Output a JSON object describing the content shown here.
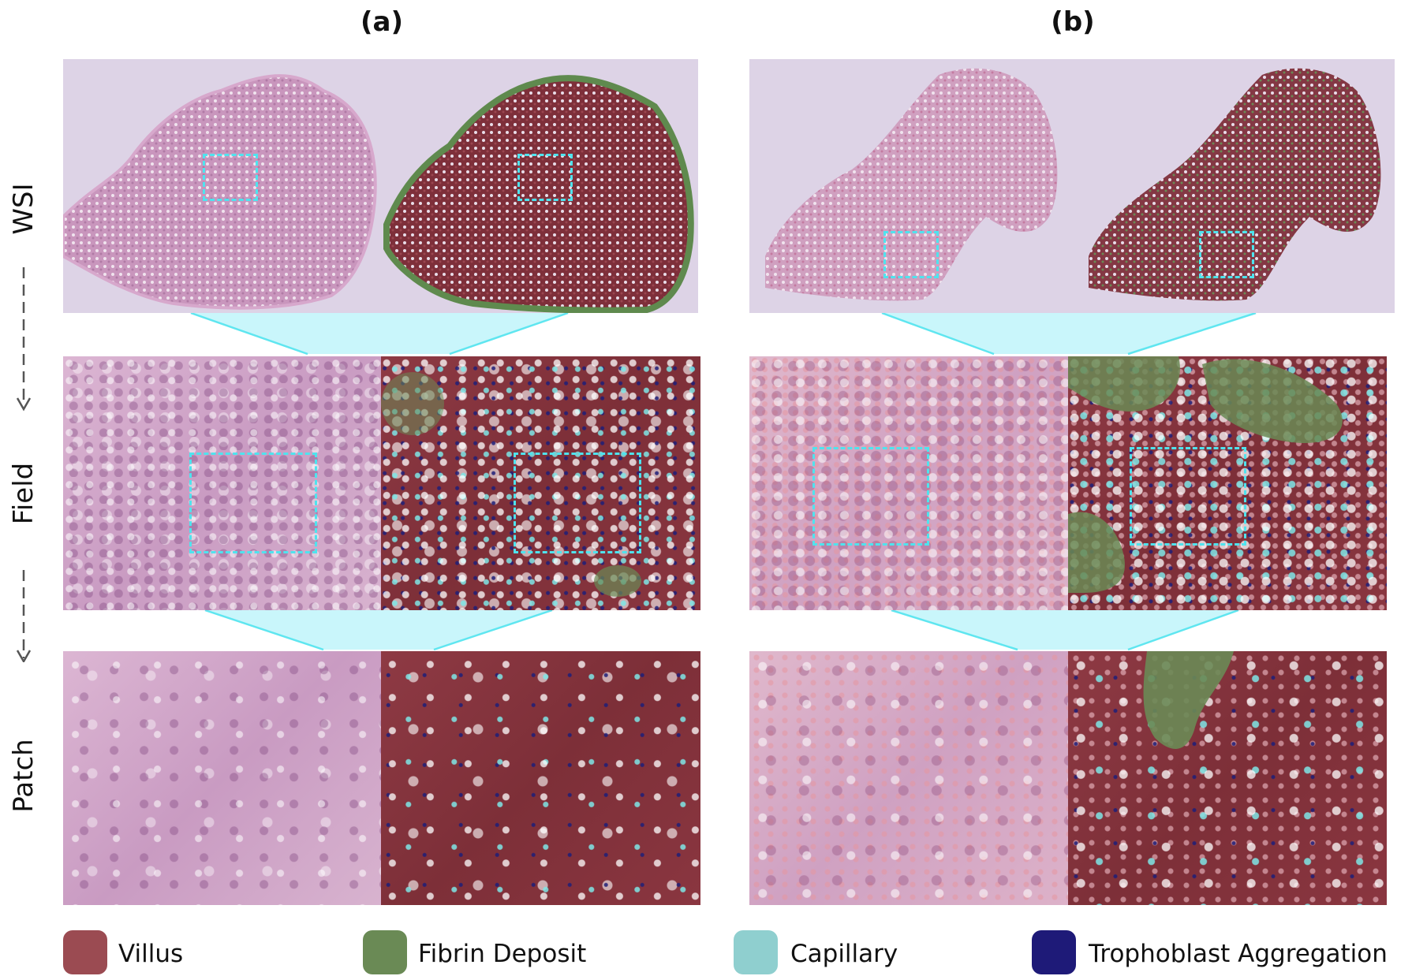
{
  "panels": {
    "a": {
      "title": "(a)"
    },
    "b": {
      "title": "(b)"
    }
  },
  "rows": {
    "wsi": "WSI",
    "field": "Field",
    "patch": "Patch"
  },
  "legend": [
    {
      "label": "Villus",
      "color": "#9b4b52"
    },
    {
      "label": "Fibrin Deposit",
      "color": "#6a8a55"
    },
    {
      "label": "Capillary",
      "color": "#8fcfcf"
    },
    {
      "label": "Trophoblast Aggregation",
      "color": "#1e1a78"
    }
  ],
  "colors": {
    "highlight": "#4fe3ee",
    "connector": "#bff5fa"
  }
}
